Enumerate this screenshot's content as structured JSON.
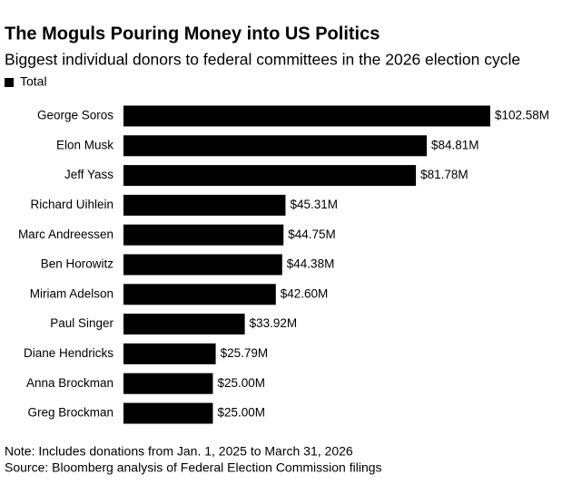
{
  "chart_data": {
    "type": "bar",
    "orientation": "horizontal",
    "title": "The Moguls Pouring Money into US Politics",
    "subtitle": "Biggest individual donors to federal committees in the 2026 election cycle",
    "categories": [
      "George Soros",
      "Elon Musk",
      "Jeff Yass",
      "Richard Uihlein",
      "Marc Andreessen",
      "Ben Horowitz",
      "Miriam Adelson",
      "Paul Singer",
      "Diane Hendricks",
      "Anna Brockman",
      "Greg Brockman"
    ],
    "series": [
      {
        "name": "Total",
        "color": "#000000",
        "values": [
          102.58,
          84.81,
          81.78,
          45.31,
          44.75,
          44.38,
          42.6,
          33.92,
          25.79,
          25.0,
          25.0
        ],
        "value_labels": [
          "$102.58M",
          "$84.81M",
          "$81.78M",
          "$45.31M",
          "$44.75M",
          "$44.38M",
          "$42.60M",
          "$33.92M",
          "$25.79M",
          "$25.00M",
          "$25.00M"
        ]
      }
    ],
    "notes": [
      "Note: Includes donations from Jan. 1, 2025 to March 31, 2026",
      "Source: Bloomberg analysis of Federal Election Commission filings"
    ]
  }
}
